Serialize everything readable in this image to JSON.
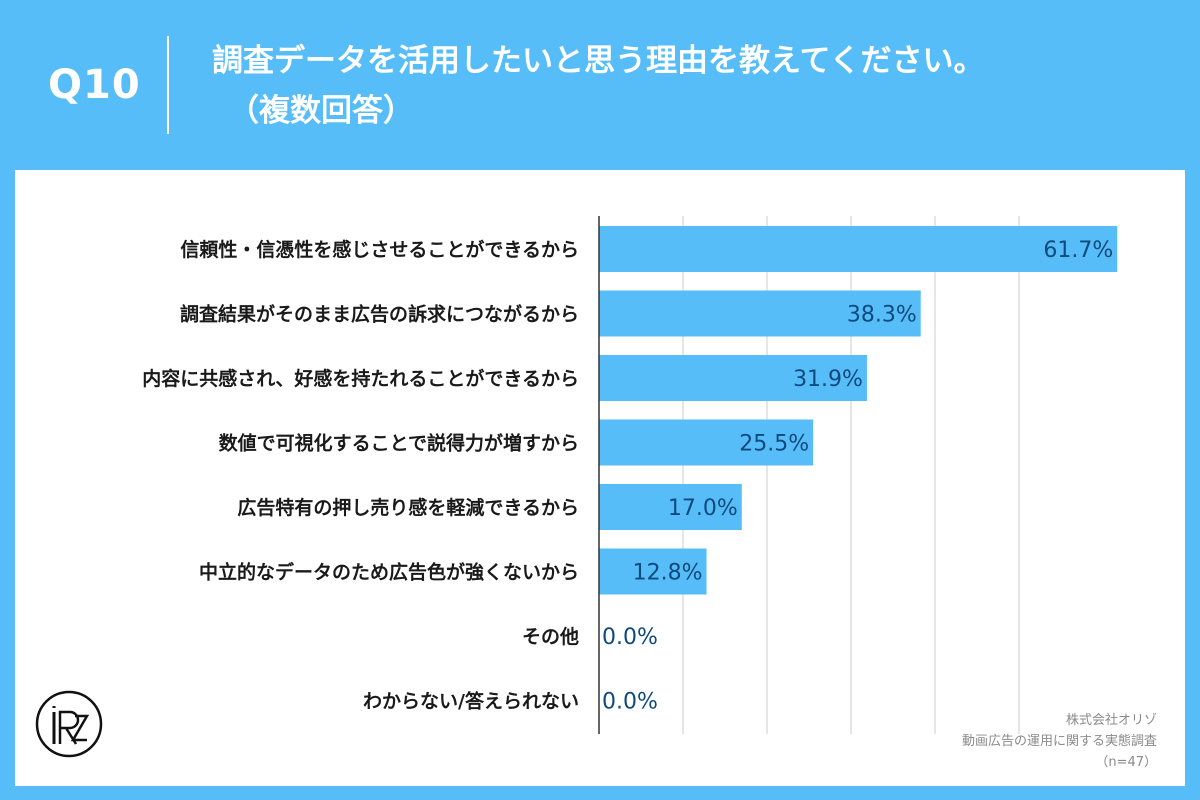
{
  "header": {
    "question_no": "Q10",
    "title": "調査データを活用したいと思う理由を教えてください。",
    "subtitle": "（複数回答）"
  },
  "colors": {
    "background": "#56bdf9",
    "panel": "#ffffff",
    "bar": "#56bdf9",
    "value_text": "#0e4a7d",
    "category_text": "#1a1a1a",
    "grid": "#cccccc",
    "axis": "#333333"
  },
  "chart_data": {
    "type": "bar",
    "orientation": "horizontal",
    "categories": [
      "信頼性・信憑性を感じさせることができるから",
      "調査結果がそのまま広告の訴求につながるから",
      "内容に共感され、好感を持たれることができるから",
      "数値で可視化することで説得力が増すから",
      "広告特有の押し売り感を軽減できるから",
      "中立的なデータのため広告色が強くないから",
      "その他",
      "わからない/答えられない"
    ],
    "values": [
      61.7,
      38.3,
      31.9,
      25.5,
      17.0,
      12.8,
      0.0,
      0.0
    ],
    "value_labels": [
      "61.7%",
      "38.3%",
      "31.9%",
      "25.5%",
      "17.0%",
      "12.8%",
      "0.0%",
      "0.0%"
    ],
    "xlim": [
      0,
      70
    ],
    "grid": true,
    "legend": "none"
  },
  "logo": {
    "icon": "orizo-circle-logo",
    "text": "RZ"
  },
  "source": {
    "company": "株式会社オリゾ",
    "survey": "動画広告の運用に関する実態調査",
    "sample": "（n=47）"
  }
}
